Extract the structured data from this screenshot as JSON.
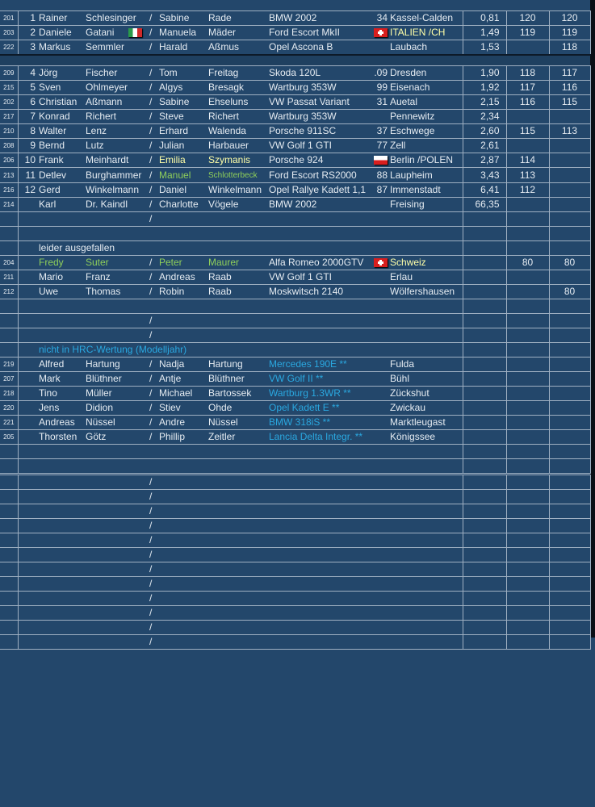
{
  "colors": {
    "background": "#23476b",
    "green": "#8fcf5a",
    "yellow": "#ffffa8",
    "blue": "#2aa8e0",
    "text": "#e6ecf2"
  },
  "rows": [
    {
      "type": "data",
      "num": "201",
      "pos": "1",
      "first": "Rainer",
      "last": "Schlesinger",
      "co_first": "Sabine",
      "co_last": "Rade",
      "car": "BMW 2002",
      "car_no": "34",
      "city": "Kassel-Calden",
      "time": "0,81",
      "p1": "120",
      "p2": "120"
    },
    {
      "type": "data",
      "num": "203",
      "pos": "2",
      "first": "Daniele",
      "last": "Gatani",
      "last_flag": "flag-it",
      "co_first": "Manuela",
      "co_last": "Mäder",
      "car": "Ford Escort MkII",
      "city_flag": "flag-ch",
      "city": "ITALIEN /CH",
      "city_color": "yellow",
      "time": "1,49",
      "p1": "119",
      "p2": "119"
    },
    {
      "type": "data",
      "num": "222",
      "pos": "3",
      "first": "Markus",
      "last": "Semmler",
      "co_first": "Harald",
      "co_last": "Aßmus",
      "car": "Opel Ascona B",
      "city": "Laubach",
      "time": "1,53",
      "p2": "118"
    },
    {
      "type": "gap"
    },
    {
      "type": "data",
      "num": "209",
      "pos": "4",
      "first": "Jörg",
      "last": "Fischer",
      "co_first": "Tom",
      "co_last": "Freitag",
      "car": "Skoda 120L",
      "car_no": ".09",
      "city": "Dresden",
      "time": "1,90",
      "p1": "118",
      "p2": "117"
    },
    {
      "type": "data",
      "num": "215",
      "pos": "5",
      "first": "Sven",
      "last": "Ohlmeyer",
      "co_first": "Algys",
      "co_last": "Bresagk",
      "car": "Wartburg 353W",
      "car_no": "99",
      "city": "Eisenach",
      "time": "1,92",
      "p1": "117",
      "p2": "116"
    },
    {
      "type": "data",
      "num": "202",
      "pos": "6",
      "first": "Christian",
      "last": "Aßmann",
      "co_first": "Sabine",
      "co_last": "Ehseluns",
      "car": "VW Passat Variant",
      "car_no": "31",
      "city": "Auetal",
      "time": "2,15",
      "p1": "116",
      "p2": "115"
    },
    {
      "type": "data",
      "num": "217",
      "pos": "7",
      "first": "Konrad",
      "last": "Richert",
      "co_first": "Steve",
      "co_last": "Richert",
      "car": "Wartburg 353W",
      "city": "Pennewitz",
      "time": "2,34"
    },
    {
      "type": "data",
      "num": "210",
      "pos": "8",
      "first": "Walter",
      "last": "Lenz",
      "co_first": "Erhard",
      "co_last": "Walenda",
      "car": "Porsche 911SC",
      "car_no": "37",
      "city": "Eschwege",
      "time": "2,60",
      "p1": "115",
      "p2": "113"
    },
    {
      "type": "data",
      "num": "208",
      "pos": "9",
      "first": "Bernd",
      "last": "Lutz",
      "co_first": "Julian",
      "co_last": "Harbauer",
      "car": "VW Golf 1 GTI",
      "car_no": "77",
      "city": "Zell",
      "time": "2,61"
    },
    {
      "type": "data",
      "num": "206",
      "pos": "10",
      "first": "Frank",
      "last": "Meinhardt",
      "co_first": "Emilia",
      "co_last": "Szymanis",
      "co_color": "yellow",
      "car": "Porsche 924",
      "city_flag": "flag-pl",
      "city": "Berlin /POLEN",
      "time": "2,87",
      "p1": "114"
    },
    {
      "type": "data",
      "num": "213",
      "pos": "11",
      "first": "Detlev",
      "last": "Burghammer",
      "co_first": "Manuel",
      "co_last": "Schlotterbeck",
      "co_color": "green",
      "co_last_small": true,
      "car": "Ford Escort RS2000",
      "car_no": "88",
      "city": "Laupheim",
      "time": "3,43",
      "p1": "113"
    },
    {
      "type": "data",
      "num": "216",
      "pos": "12",
      "first": "Gerd",
      "last": "Winkelmann",
      "co_first": "Daniel",
      "co_last": "Winkelmann",
      "car": "Opel Rallye Kadett 1,1",
      "car_no": "87",
      "city": "Immenstadt",
      "time": "6,41",
      "p1": "112"
    },
    {
      "type": "data",
      "num": "214",
      "first": "Karl",
      "last": "Dr. Kaindl",
      "co_first": "Charlotte",
      "co_last": "Vögele",
      "car": "BMW 2002",
      "city": "Freising",
      "time": "66,35"
    },
    {
      "type": "empty",
      "slash": true
    },
    {
      "type": "empty"
    },
    {
      "type": "label",
      "label": "leider ausgefallen"
    },
    {
      "type": "data",
      "num": "204",
      "first": "Fredy",
      "last": "Suter",
      "driver_color": "green",
      "co_first": "Peter",
      "co_last": "Maurer",
      "co_color": "green",
      "car": "Alfa Romeo 2000GTV",
      "city_flag": "flag-ch",
      "city": "Schweiz",
      "city_color": "yellow",
      "p1": "80",
      "p2": "80"
    },
    {
      "type": "data",
      "num": "211",
      "first": "Mario",
      "last": "Franz",
      "co_first": "Andreas",
      "co_last": "Raab",
      "car": "VW Golf 1 GTI",
      "city": "Erlau"
    },
    {
      "type": "data",
      "num": "212",
      "first": "Uwe",
      "last": "Thomas",
      "co_first": "Robin",
      "co_last": "Raab",
      "car": "Moskwitsch 2140",
      "city": "Wölfershausen",
      "p2": "80"
    },
    {
      "type": "empty"
    },
    {
      "type": "empty",
      "slash": true
    },
    {
      "type": "empty",
      "slash": true
    },
    {
      "type": "label",
      "label": "nicht in HRC-Wertung (Modelljahr)",
      "label_color": "blue"
    },
    {
      "type": "data",
      "num": "219",
      "first": "Alfred",
      "last": "Hartung",
      "co_first": "Nadja",
      "co_last": "Hartung",
      "car": "Mercedes 190E **",
      "car_color": "blue",
      "city": "Fulda"
    },
    {
      "type": "data",
      "num": "207",
      "first": "Mark",
      "last": "Blüthner",
      "co_first": "Antje",
      "co_last": "Blüthner",
      "car": "VW Golf II  **",
      "car_color": "blue",
      "city": "Bühl"
    },
    {
      "type": "data",
      "num": "218",
      "first": "Tino",
      "last": "Müller",
      "co_first": "Michael",
      "co_last": "Bartossek",
      "car": "Wartburg 1.3WR **",
      "car_color": "blue",
      "city": "Zückshut"
    },
    {
      "type": "data",
      "num": "220",
      "first": "Jens",
      "last": "Didion",
      "co_first": "Stiev",
      "co_last": "Ohde",
      "car": "Opel Kadett E **",
      "car_color": "blue",
      "city": "Zwickau"
    },
    {
      "type": "data",
      "num": "221",
      "first": "Andreas",
      "last": "Nüssel",
      "co_first": "Andre",
      "co_last": "Nüssel",
      "car": "BMW 318iS **",
      "car_color": "blue",
      "city": "Marktleugast"
    },
    {
      "type": "data",
      "num": "205",
      "first": "Thorsten",
      "last": "Götz",
      "co_first": "Phillip",
      "co_last": "Zeitler",
      "car": "Lancia Delta Integr. **",
      "car_color": "blue",
      "city": "Königssee"
    },
    {
      "type": "empty"
    },
    {
      "type": "empty"
    },
    {
      "type": "empty",
      "slash": true,
      "double": true
    },
    {
      "type": "empty",
      "slash": true
    },
    {
      "type": "empty",
      "slash": true
    },
    {
      "type": "empty",
      "slash": true
    },
    {
      "type": "empty",
      "slash": true
    },
    {
      "type": "empty",
      "slash": true
    },
    {
      "type": "empty",
      "slash": true
    },
    {
      "type": "empty",
      "slash": true
    },
    {
      "type": "empty",
      "slash": true
    },
    {
      "type": "empty",
      "slash": true
    },
    {
      "type": "empty",
      "slash": true
    },
    {
      "type": "empty",
      "slash": true
    }
  ],
  "separator": "/"
}
